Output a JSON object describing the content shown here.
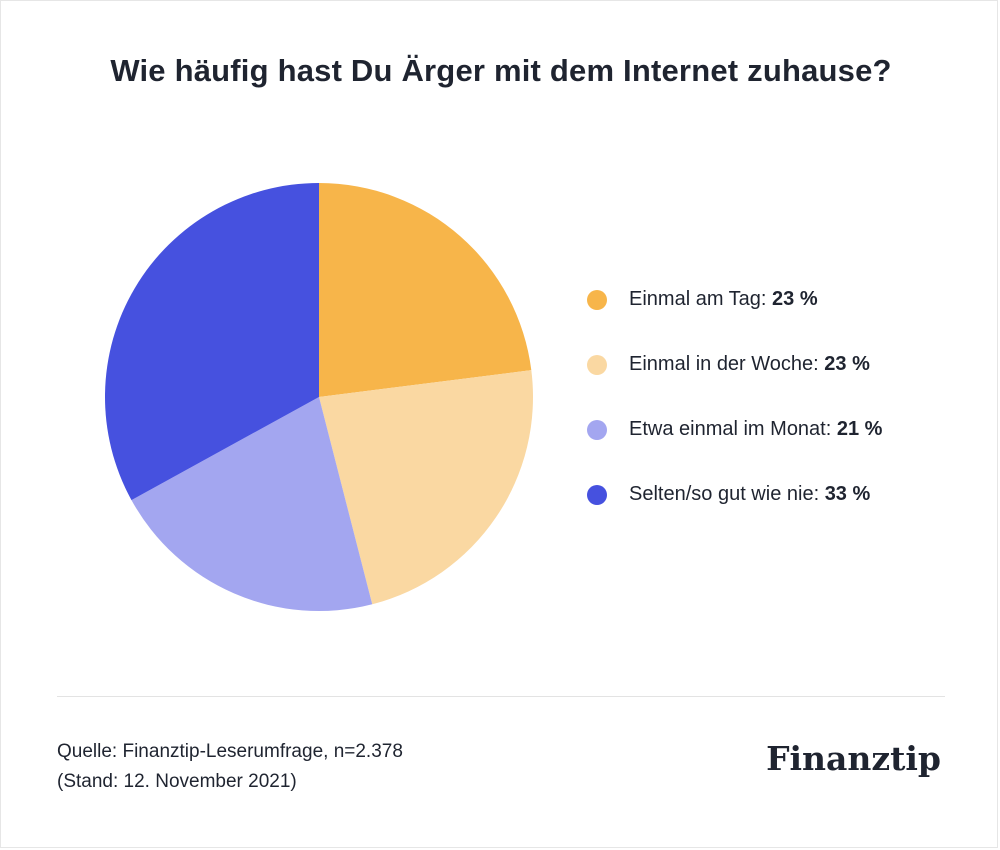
{
  "title": "Wie häufig hast Du Ärger mit dem Internet zuhause?",
  "chart_data": {
    "type": "pie",
    "title": "Wie häufig hast Du Ärger mit dem Internet zuhause?",
    "slices": [
      {
        "label": "Einmal am Tag",
        "value": 23,
        "value_label": "23 %",
        "color": "#F7B54A"
      },
      {
        "label": "Einmal in der Woche",
        "value": 23,
        "value_label": "23 %",
        "color": "#FAD8A2"
      },
      {
        "label": "Etwa einmal im Monat",
        "value": 21,
        "value_label": "21 %",
        "color": "#A3A6F0"
      },
      {
        "label": "Selten/so gut wie nie",
        "value": 33,
        "value_label": "33 %",
        "color": "#4651DF"
      }
    ],
    "legend_position": "right",
    "start": "top",
    "direction": "clockwise"
  },
  "footer": {
    "source_line1": "Quelle: Finanztip-Leserumfrage, n=2.378",
    "source_line2": "(Stand: 12. November 2021)",
    "brand": "Finanztip"
  }
}
